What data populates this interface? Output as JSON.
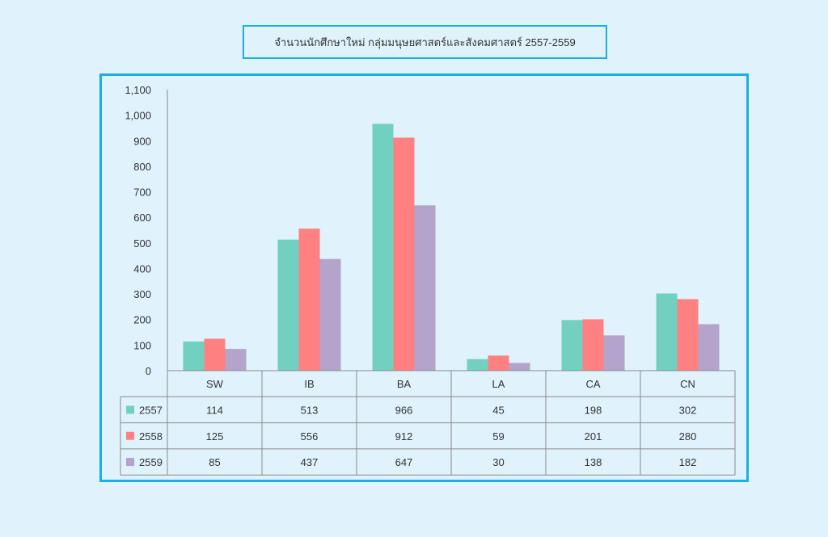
{
  "chart_data": {
    "type": "bar",
    "title": "จำนวนนักศึกษาใหม่ กลุ่มมนุษยศาสตร์และสังคมศาสตร์ 2557-2559",
    "categories": [
      "SW",
      "IB",
      "BA",
      "LA",
      "CA",
      "CN"
    ],
    "series": [
      {
        "name": "2557",
        "color": "#72d0c0",
        "values": [
          114,
          513,
          966,
          45,
          198,
          302
        ]
      },
      {
        "name": "2558",
        "color": "#ff8080",
        "values": [
          125,
          556,
          912,
          59,
          201,
          280
        ]
      },
      {
        "name": "2559",
        "color": "#b4a3cb",
        "values": [
          85,
          437,
          647,
          30,
          138,
          182
        ]
      }
    ],
    "ylim": [
      0,
      1100
    ],
    "yticks": [
      "0",
      "100",
      "200",
      "300",
      "400",
      "500",
      "600",
      "700",
      "800",
      "900",
      "1,000",
      "1,100"
    ],
    "legend": "data-table",
    "xlabel": "",
    "ylabel": ""
  }
}
